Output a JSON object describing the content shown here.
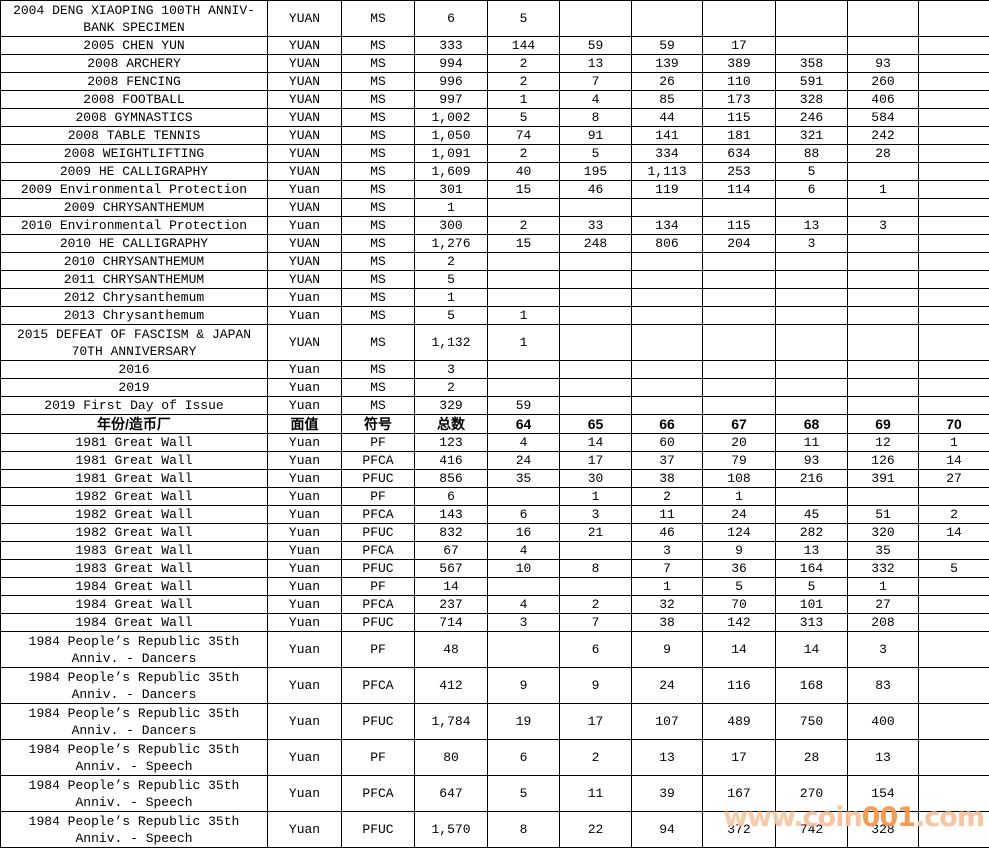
{
  "table": {
    "header": {
      "labels": [
        "年份/造币厂",
        "面值",
        "符号",
        "总数",
        "64",
        "65",
        "66",
        "67",
        "68",
        "69",
        "70"
      ]
    },
    "sections": [
      {
        "rows": [
          {
            "name": "2004 DENG XIAOPING 100TH ANNIV-\nBANK SPECIMEN",
            "denom": "YUAN",
            "code": "MS",
            "total": "6",
            "values": [
              "5",
              "",
              "",
              "",
              "",
              "",
              ""
            ]
          },
          {
            "name": "2005 CHEN YUN",
            "denom": "YUAN",
            "code": "MS",
            "total": "333",
            "values": [
              "144",
              "59",
              "59",
              "17",
              "",
              "",
              ""
            ]
          },
          {
            "name": "2008 ARCHERY",
            "denom": "YUAN",
            "code": "MS",
            "total": "994",
            "values": [
              "2",
              "13",
              "139",
              "389",
              "358",
              "93",
              ""
            ]
          },
          {
            "name": "2008 FENCING",
            "denom": "YUAN",
            "code": "MS",
            "total": "996",
            "values": [
              "2",
              "7",
              "26",
              "110",
              "591",
              "260",
              ""
            ]
          },
          {
            "name": "2008 FOOTBALL",
            "denom": "YUAN",
            "code": "MS",
            "total": "997",
            "values": [
              "1",
              "4",
              "85",
              "173",
              "328",
              "406",
              ""
            ]
          },
          {
            "name": "2008 GYMNASTICS",
            "denom": "YUAN",
            "code": "MS",
            "total": "1,002",
            "values": [
              "5",
              "8",
              "44",
              "115",
              "246",
              "584",
              ""
            ]
          },
          {
            "name": "2008 TABLE TENNIS",
            "denom": "YUAN",
            "code": "MS",
            "total": "1,050",
            "values": [
              "74",
              "91",
              "141",
              "181",
              "321",
              "242",
              ""
            ]
          },
          {
            "name": "2008 WEIGHTLIFTING",
            "denom": "YUAN",
            "code": "MS",
            "total": "1,091",
            "values": [
              "2",
              "5",
              "334",
              "634",
              "88",
              "28",
              ""
            ]
          },
          {
            "name": "2009 HE CALLIGRAPHY",
            "denom": "YUAN",
            "code": "MS",
            "total": "1,609",
            "values": [
              "40",
              "195",
              "1,113",
              "253",
              "5",
              "",
              ""
            ]
          },
          {
            "name": "2009 Environmental Protection",
            "denom": "Yuan",
            "code": "MS",
            "total": "301",
            "values": [
              "15",
              "46",
              "119",
              "114",
              "6",
              "1",
              ""
            ]
          },
          {
            "name": "2009 CHRYSANTHEMUM",
            "denom": "YUAN",
            "code": "MS",
            "total": "1",
            "values": [
              "",
              "",
              "",
              "",
              "",
              "",
              ""
            ]
          },
          {
            "name": "2010 Environmental Protection",
            "denom": "Yuan",
            "code": "MS",
            "total": "300",
            "values": [
              "2",
              "33",
              "134",
              "115",
              "13",
              "3",
              ""
            ]
          },
          {
            "name": "2010 HE CALLIGRAPHY",
            "denom": "YUAN",
            "code": "MS",
            "total": "1,276",
            "values": [
              "15",
              "248",
              "806",
              "204",
              "3",
              "",
              ""
            ]
          },
          {
            "name": "2010 CHRYSANTHEMUM",
            "denom": "YUAN",
            "code": "MS",
            "total": "2",
            "values": [
              "",
              "",
              "",
              "",
              "",
              "",
              ""
            ]
          },
          {
            "name": "2011 CHRYSANTHEMUM",
            "denom": "YUAN",
            "code": "MS",
            "total": "5",
            "values": [
              "",
              "",
              "",
              "",
              "",
              "",
              ""
            ]
          },
          {
            "name": "2012 Chrysanthemum",
            "denom": "Yuan",
            "code": "MS",
            "total": "1",
            "values": [
              "",
              "",
              "",
              "",
              "",
              "",
              ""
            ]
          },
          {
            "name": "2013 Chrysanthemum",
            "denom": "Yuan",
            "code": "MS",
            "total": "5",
            "values": [
              "1",
              "",
              "",
              "",
              "",
              "",
              ""
            ]
          },
          {
            "name": "2015 DEFEAT OF FASCISM & JAPAN\n70TH ANNIVERSARY",
            "denom": "YUAN",
            "code": "MS",
            "total": "1,132",
            "values": [
              "1",
              "",
              "",
              "",
              "",
              "",
              ""
            ]
          },
          {
            "name": "2016",
            "denom": "Yuan",
            "code": "MS",
            "total": "3",
            "values": [
              "",
              "",
              "",
              "",
              "",
              "",
              ""
            ]
          },
          {
            "name": "2019",
            "denom": "Yuan",
            "code": "MS",
            "total": "2",
            "values": [
              "",
              "",
              "",
              "",
              "",
              "",
              ""
            ]
          },
          {
            "name": "2019 First Day of Issue",
            "denom": "Yuan",
            "code": "MS",
            "total": "329",
            "values": [
              "59",
              "",
              "",
              "",
              "",
              "",
              ""
            ]
          }
        ]
      },
      {
        "rows": [
          {
            "name": "1981 Great Wall",
            "denom": "Yuan",
            "code": "PF",
            "total": "123",
            "values": [
              "4",
              "14",
              "60",
              "20",
              "11",
              "12",
              "1"
            ]
          },
          {
            "name": "1981 Great Wall",
            "denom": "Yuan",
            "code": "PFCA",
            "total": "416",
            "values": [
              "24",
              "17",
              "37",
              "79",
              "93",
              "126",
              "14"
            ]
          },
          {
            "name": "1981 Great Wall",
            "denom": "Yuan",
            "code": "PFUC",
            "total": "856",
            "values": [
              "35",
              "30",
              "38",
              "108",
              "216",
              "391",
              "27"
            ]
          },
          {
            "name": "1982 Great Wall",
            "denom": "Yuan",
            "code": "PF",
            "total": "6",
            "values": [
              "",
              "1",
              "2",
              "1",
              "",
              "",
              ""
            ]
          },
          {
            "name": "1982 Great Wall",
            "denom": "Yuan",
            "code": "PFCA",
            "total": "143",
            "values": [
              "6",
              "3",
              "11",
              "24",
              "45",
              "51",
              "2"
            ]
          },
          {
            "name": "1982 Great Wall",
            "denom": "Yuan",
            "code": "PFUC",
            "total": "832",
            "values": [
              "16",
              "21",
              "46",
              "124",
              "282",
              "320",
              "14"
            ]
          },
          {
            "name": "1983 Great Wall",
            "denom": "Yuan",
            "code": "PFCA",
            "total": "67",
            "values": [
              "4",
              "",
              "3",
              "9",
              "13",
              "35",
              ""
            ]
          },
          {
            "name": "1983 Great Wall",
            "denom": "Yuan",
            "code": "PFUC",
            "total": "567",
            "values": [
              "10",
              "8",
              "7",
              "36",
              "164",
              "332",
              "5"
            ]
          },
          {
            "name": "1984 Great Wall",
            "denom": "Yuan",
            "code": "PF",
            "total": "14",
            "values": [
              "",
              "",
              "1",
              "5",
              "5",
              "1",
              ""
            ]
          },
          {
            "name": "1984 Great Wall",
            "denom": "Yuan",
            "code": "PFCA",
            "total": "237",
            "values": [
              "4",
              "2",
              "32",
              "70",
              "101",
              "27",
              ""
            ]
          },
          {
            "name": "1984 Great Wall",
            "denom": "Yuan",
            "code": "PFUC",
            "total": "714",
            "values": [
              "3",
              "7",
              "38",
              "142",
              "313",
              "208",
              ""
            ]
          },
          {
            "name": "1984 People’s Republic 35th\nAnniv. - Dancers",
            "denom": "Yuan",
            "code": "PF",
            "total": "48",
            "values": [
              "",
              "6",
              "9",
              "14",
              "14",
              "3",
              ""
            ]
          },
          {
            "name": "1984 People’s Republic 35th\nAnniv. - Dancers",
            "denom": "Yuan",
            "code": "PFCA",
            "total": "412",
            "values": [
              "9",
              "9",
              "24",
              "116",
              "168",
              "83",
              ""
            ]
          },
          {
            "name": "1984 People’s Republic 35th\nAnniv. - Dancers",
            "denom": "Yuan",
            "code": "PFUC",
            "total": "1,784",
            "values": [
              "19",
              "17",
              "107",
              "489",
              "750",
              "400",
              ""
            ]
          },
          {
            "name": "1984 People’s Republic 35th\nAnniv. - Speech",
            "denom": "Yuan",
            "code": "PF",
            "total": "80",
            "values": [
              "6",
              "2",
              "13",
              "17",
              "28",
              "13",
              ""
            ]
          },
          {
            "name": "1984 People’s Republic 35th\nAnniv. - Speech",
            "denom": "Yuan",
            "code": "PFCA",
            "total": "647",
            "values": [
              "5",
              "11",
              "39",
              "167",
              "270",
              "154",
              ""
            ]
          },
          {
            "name": "1984 People’s Republic 35th\nAnniv. - Speech",
            "denom": "Yuan",
            "code": "PFUC",
            "total": "1,570",
            "values": [
              "8",
              "22",
              "94",
              "372",
              "742",
              "328",
              ""
            ]
          }
        ]
      }
    ]
  },
  "watermark": {
    "text": "www.coin001.com",
    "parts": [
      {
        "text": "www.",
        "color": "#f8c8a2"
      },
      {
        "text": "coin",
        "color": "#f8c09a"
      },
      {
        "text": "001",
        "color": "#f4974a"
      },
      {
        "text": ".com",
        "color": "#f8c09a"
      }
    ]
  }
}
